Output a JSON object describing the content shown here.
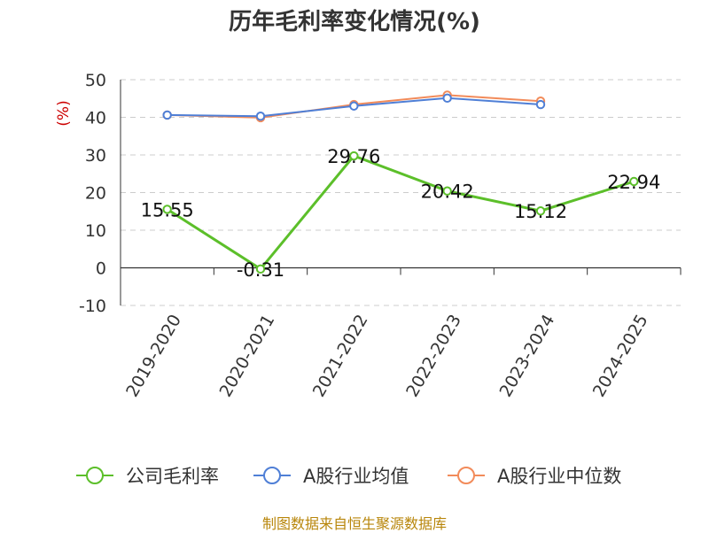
{
  "chart_data": {
    "type": "line",
    "title": "历年毛利率变化情况(%)",
    "ylabel": "(%)",
    "ylim": [
      -10,
      50
    ],
    "yticks": [
      50,
      40,
      30,
      20,
      10,
      0,
      -10
    ],
    "grid": true,
    "legend_position": "bottom",
    "categories": [
      "2019-2020",
      "2020-2021",
      "2021-2022",
      "2022-2023",
      "2023-2024",
      "2024-2025"
    ],
    "series": [
      {
        "name": "公司毛利率",
        "color": "#5cbf2a",
        "values": [
          15.55,
          -0.31,
          29.76,
          20.42,
          15.12,
          22.94
        ],
        "labels": [
          "15.55",
          "-0.31",
          "29.76",
          "20.42",
          "15.12",
          "22.94"
        ]
      },
      {
        "name": "A股行业均值",
        "color": "#4f7fd6",
        "values": [
          40.6,
          40.3,
          43.0,
          45.1,
          43.4,
          null
        ]
      },
      {
        "name": "A股行业中位数",
        "color": "#f28b5a",
        "values": [
          40.6,
          39.9,
          43.4,
          45.9,
          44.3,
          null
        ]
      }
    ]
  },
  "source": "制图数据来自恒生聚源数据库"
}
